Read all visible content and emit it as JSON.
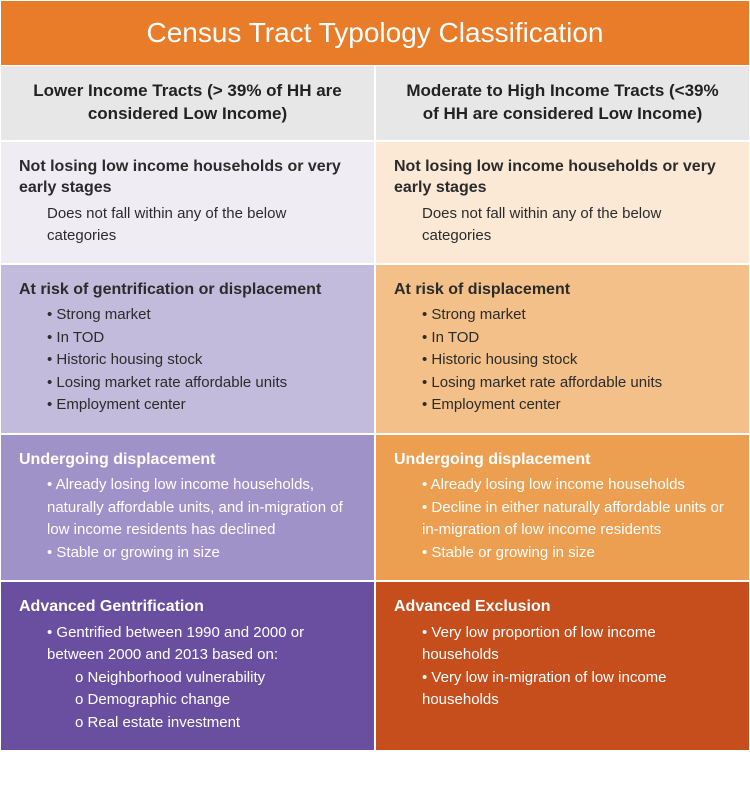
{
  "title": "Census Tract Typology Classification",
  "title_bg": "#e87c28",
  "columns": [
    {
      "header": "Lower Income Tracts (> 39% of HH are considered Low Income)",
      "header_bg": "#e7e7e7",
      "header_color": "#222222",
      "stages": [
        {
          "title": "Not losing low income households or very early stages",
          "body_plain": "Does not fall within any of the below categories",
          "bg": "#efecf3",
          "text_color": "#2b2b2b"
        },
        {
          "title": "At risk of gentrification or displacement",
          "bullets": [
            "Strong market",
            "In TOD",
            "Historic housing stock",
            "Losing market rate affordable units",
            "Employment center"
          ],
          "bg": "#c3bbdb",
          "text_color": "#2b2b2b"
        },
        {
          "title": "Undergoing displacement",
          "bullets": [
            "Already losing low income households, naturally affordable units, and in-migration of low income residents has declined",
            "Stable or growing in size"
          ],
          "bg": "#9f92c9",
          "text_color": "#ffffff"
        },
        {
          "title": "Advanced Gentrification",
          "bullets": [
            "Gentrified between 1990 and 2000 or between 2000 and 2013 based on:"
          ],
          "sub_bullets": [
            "Neighborhood vulnerability",
            "Demographic change",
            "Real estate investment"
          ],
          "bg": "#6a4fa0",
          "text_color": "#ffffff"
        }
      ]
    },
    {
      "header": "Moderate to High Income Tracts (<39% of HH are considered Low Income)",
      "header_bg": "#e7e7e7",
      "header_color": "#222222",
      "stages": [
        {
          "title": "Not losing low income households or very early stages",
          "body_plain": "Does not fall within any of the below categories",
          "bg": "#fbe9d6",
          "text_color": "#2b2b2b"
        },
        {
          "title": "At risk of displacement",
          "bullets": [
            "Strong market",
            "In TOD",
            "Historic housing stock",
            "Losing market rate affordable units",
            "Employment center"
          ],
          "bg": "#f2c088",
          "text_color": "#2b2b2b"
        },
        {
          "title": "Undergoing displacement",
          "bullets": [
            "Already losing low income households",
            "Decline in either naturally affordable units or in-migration of low income residents",
            "Stable or growing in size"
          ],
          "bg": "#ec9e51",
          "text_color": "#ffffff"
        },
        {
          "title": "Advanced Exclusion",
          "bullets": [
            "Very low proportion of low income households",
            "Very low in-migration of low income households"
          ],
          "bg": "#c54e1c",
          "text_color": "#ffffff"
        }
      ]
    }
  ]
}
